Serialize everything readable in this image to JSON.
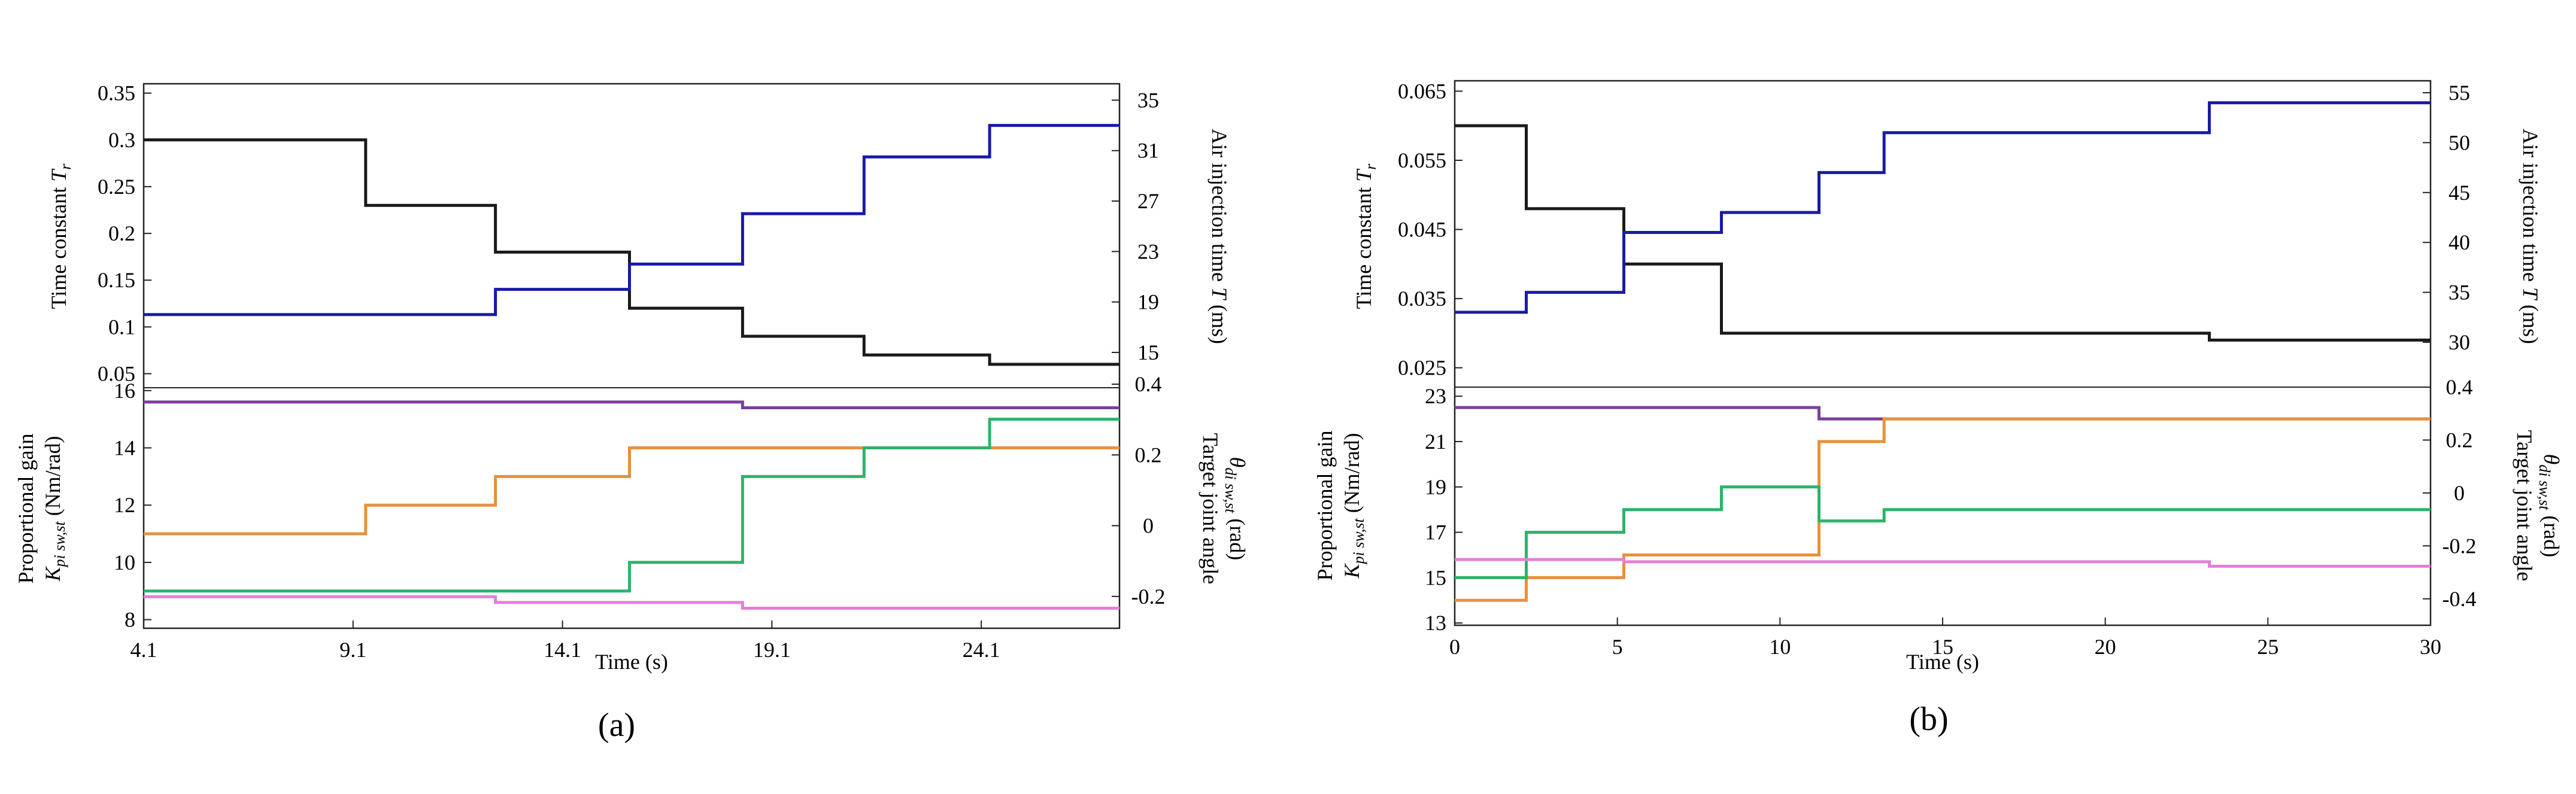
{
  "chart_data": [
    {
      "id": "a",
      "type": "line",
      "panel_label": "(a)",
      "xlabel": "Time (s)",
      "xlim": [
        4.1,
        27.4
      ],
      "xticks": [
        4.1,
        9.1,
        14.1,
        19.1,
        24.1
      ],
      "xtick_labels": [
        "4.1",
        "9.1",
        "14.1",
        "19.1",
        "24.1"
      ],
      "top": {
        "ylabel_left": "Time constant T_r",
        "ylabel_right": "Air injection time T (ms)",
        "ylim_left": [
          0.035,
          0.36
        ],
        "yticks_left": [
          0.05,
          0.1,
          0.15,
          0.2,
          0.25,
          0.3,
          0.35
        ],
        "ytick_labels_left": [
          "0.05",
          "0.1",
          "0.15",
          "0.2",
          "0.25",
          "0.3",
          "0.35"
        ],
        "ylim_right": [
          12.2,
          36.3
        ],
        "yticks_right": [
          15,
          19,
          23,
          27,
          31,
          35
        ],
        "ytick_labels_right": [
          "15",
          "19",
          "23",
          "27",
          "31",
          "35"
        ],
        "series": [
          {
            "name": "Time constant",
            "axis": "left",
            "color": "#1a1a1a",
            "x": [
              4.1,
              9.4,
              12.5,
              15.7,
              18.4,
              21.3,
              24.3,
              27.4
            ],
            "y": [
              0.3,
              0.23,
              0.18,
              0.12,
              0.09,
              0.07,
              0.06,
              0.06
            ]
          },
          {
            "name": "Air injection time",
            "axis": "right",
            "color": "#1a1aa6",
            "x": [
              4.1,
              12.5,
              15.7,
              18.4,
              21.3,
              24.3,
              27.4
            ],
            "y": [
              18.0,
              20.0,
              22.0,
              26.0,
              30.5,
              33.0,
              33.0
            ]
          }
        ]
      },
      "bottom": {
        "ylabel_left": "Proportional gain K_pi sw,st (Nm/rad)",
        "ylabel_right": "Target joint angle θ_di sw,st (rad)",
        "ylim_left": [
          7.7,
          16.1
        ],
        "yticks_left": [
          8,
          10,
          12,
          14,
          16
        ],
        "ytick_labels_left": [
          "8",
          "10",
          "12",
          "14",
          "16"
        ],
        "ylim_right": [
          -0.29,
          0.39
        ],
        "yticks_right": [
          -0.2,
          0,
          0.2,
          0.4
        ],
        "ytick_labels_right": [
          "-0.2",
          "0",
          "0.2",
          "0.4"
        ],
        "series": [
          {
            "name": "Purple",
            "axis": "left",
            "color": "#7b3f9e",
            "x": [
              4.1,
              18.4,
              27.4
            ],
            "y": [
              15.6,
              15.4,
              15.4
            ]
          },
          {
            "name": "Orange",
            "axis": "left",
            "color": "#e8913a",
            "x": [
              4.1,
              9.4,
              12.5,
              15.7,
              27.4
            ],
            "y": [
              11.0,
              12.0,
              13.0,
              14.0,
              14.0
            ]
          },
          {
            "name": "Green",
            "axis": "left",
            "color": "#2db36b",
            "x": [
              4.1,
              15.7,
              18.4,
              21.3,
              24.3,
              27.4
            ],
            "y": [
              9.0,
              10.0,
              13.0,
              14.0,
              15.0,
              15.0
            ]
          },
          {
            "name": "Pink",
            "axis": "left",
            "color": "#e47fd8",
            "x": [
              4.1,
              12.5,
              18.4,
              27.4
            ],
            "y": [
              8.8,
              8.6,
              8.4,
              8.4
            ]
          }
        ]
      }
    },
    {
      "id": "b",
      "type": "line",
      "panel_label": "(b)",
      "xlabel": "Time (s)",
      "xlim": [
        0,
        30
      ],
      "xticks": [
        0,
        5,
        10,
        15,
        20,
        25,
        30
      ],
      "xtick_labels": [
        "0",
        "5",
        "10",
        "15",
        "20",
        "25",
        "30"
      ],
      "top": {
        "ylabel_left": "Time constant T_r",
        "ylabel_right": "Air injection time T (ms)",
        "ylim_left": [
          0.0222,
          0.0665
        ],
        "yticks_left": [
          0.025,
          0.035,
          0.045,
          0.055,
          0.065
        ],
        "ytick_labels_left": [
          "0.025",
          "0.035",
          "0.045",
          "0.055",
          "0.065"
        ],
        "ylim_right": [
          25.5,
          56.2
        ],
        "yticks_right": [
          30,
          35,
          40,
          45,
          50,
          55
        ],
        "ytick_labels_right": [
          "30",
          "35",
          "40",
          "45",
          "50",
          "55"
        ],
        "series": [
          {
            "name": "Time constant",
            "axis": "left",
            "color": "#1a1a1a",
            "x": [
              0,
              2.2,
              5.2,
              8.2,
              23.2,
              30
            ],
            "y": [
              0.06,
              0.048,
              0.04,
              0.03,
              0.029,
              0.029
            ]
          },
          {
            "name": "Air injection time",
            "axis": "right",
            "color": "#1a1aa6",
            "x": [
              0,
              2.2,
              5.2,
              8.2,
              11.2,
              13.2,
              23.2,
              30
            ],
            "y": [
              33.0,
              35.0,
              41.0,
              43.0,
              47.0,
              51.0,
              54.0,
              54.0
            ]
          }
        ]
      },
      "bottom": {
        "ylabel_left": "Proportional gain K_pi sw,st (Nm/rad)",
        "ylabel_right": "Target joint angle θ_di sw,st (rad)",
        "ylim_left": [
          12.9,
          23.4
        ],
        "yticks_left": [
          13,
          15,
          17,
          19,
          21,
          23
        ],
        "ytick_labels_left": [
          "13",
          "15",
          "17",
          "19",
          "21",
          "23"
        ],
        "ylim_right": [
          -0.5,
          0.4
        ],
        "yticks_right": [
          -0.4,
          -0.2,
          0,
          0.2,
          0.4
        ],
        "ytick_labels_right": [
          "-0.4",
          "-0.2",
          "0",
          "0.2",
          "0.4"
        ],
        "series": [
          {
            "name": "Purple",
            "axis": "left",
            "color": "#7b3f9e",
            "x": [
              0,
              11.2,
              30
            ],
            "y": [
              22.5,
              22.0,
              22.0
            ]
          },
          {
            "name": "Orange",
            "axis": "left",
            "color": "#e8913a",
            "x": [
              0,
              2.2,
              5.2,
              11.2,
              13.2,
              30
            ],
            "y": [
              14.0,
              15.0,
              16.0,
              21.0,
              22.0,
              22.0
            ]
          },
          {
            "name": "Green",
            "axis": "left",
            "color": "#2db36b",
            "x": [
              0,
              2.2,
              5.2,
              8.2,
              11.2,
              13.2,
              30
            ],
            "y": [
              15.0,
              17.0,
              18.0,
              19.0,
              17.5,
              18.0,
              18.0
            ]
          },
          {
            "name": "Pink",
            "axis": "left",
            "color": "#e47fd8",
            "x": [
              0,
              5.2,
              23.2,
              30
            ],
            "y": [
              15.8,
              15.7,
              15.5,
              15.5
            ]
          }
        ]
      }
    }
  ]
}
